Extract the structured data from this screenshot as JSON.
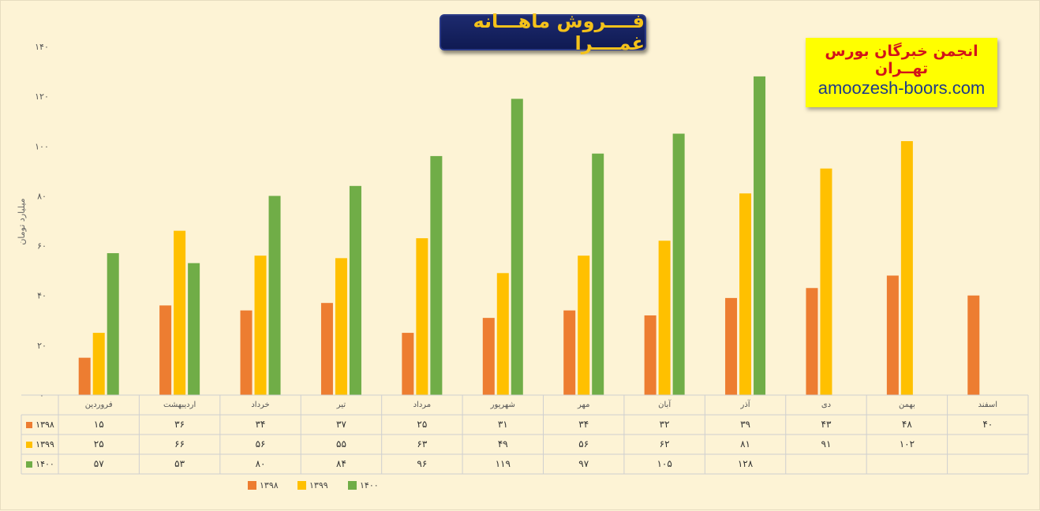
{
  "title": "فــــروش ماهـــانه غمــــرا",
  "brand": {
    "name": "انجمن خبرگان بورس تهــران",
    "url": "amoozesh-boors.com"
  },
  "chart_data": {
    "type": "bar",
    "ylabel": "میلیارد تومان",
    "ylim": [
      0,
      140
    ],
    "y_ticks": [
      "۰",
      "۲۰",
      "۴۰",
      "۶۰",
      "۸۰",
      "۱۰۰",
      "۱۲۰",
      "۱۴۰"
    ],
    "grid": false,
    "legend_position": "bottom",
    "data_table": true,
    "categories": [
      "فروردین",
      "اردیبهشت",
      "خرداد",
      "تیر",
      "مرداد",
      "شهریور",
      "مهر",
      "آبان",
      "آذر",
      "دی",
      "بهمن",
      "اسفند"
    ],
    "series": [
      {
        "name": "۱۳۹۸",
        "color": "#ed7d31",
        "values": [
          15,
          36,
          34,
          37,
          25,
          31,
          34,
          32,
          39,
          43,
          48,
          40
        ],
        "labels": [
          "۱۵",
          "۳۶",
          "۳۴",
          "۳۷",
          "۲۵",
          "۳۱",
          "۳۴",
          "۳۲",
          "۳۹",
          "۴۳",
          "۴۸",
          "۴۰"
        ]
      },
      {
        "name": "۱۳۹۹",
        "color": "#ffc000",
        "values": [
          25,
          66,
          56,
          55,
          63,
          49,
          56,
          62,
          81,
          91,
          102,
          null
        ],
        "labels": [
          "۲۵",
          "۶۶",
          "۵۶",
          "۵۵",
          "۶۳",
          "۴۹",
          "۵۶",
          "۶۲",
          "۸۱",
          "۹۱",
          "۱۰۲",
          ""
        ]
      },
      {
        "name": "۱۴۰۰",
        "color": "#70ad47",
        "values": [
          57,
          53,
          80,
          84,
          96,
          119,
          97,
          105,
          128,
          null,
          null,
          null
        ],
        "labels": [
          "۵۷",
          "۵۳",
          "۸۰",
          "۸۴",
          "۹۶",
          "۱۱۹",
          "۹۷",
          "۱۰۵",
          "۱۲۸",
          "",
          "",
          ""
        ]
      }
    ]
  }
}
